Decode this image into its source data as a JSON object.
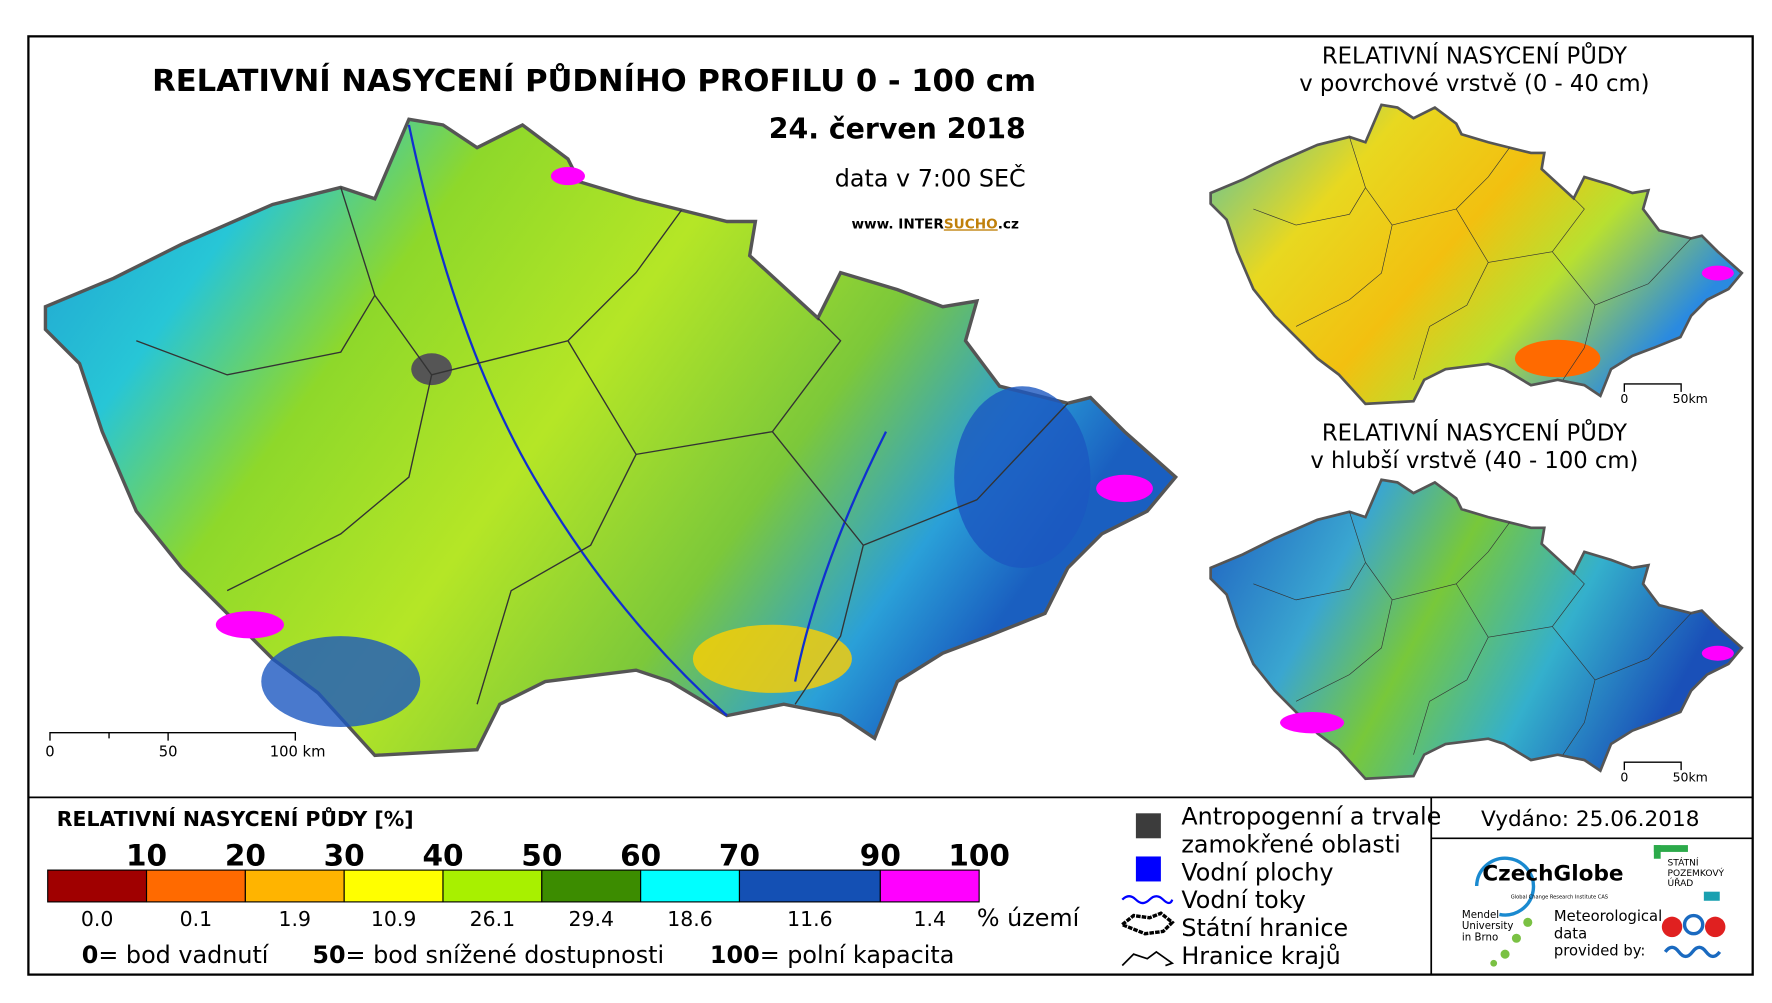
{
  "map": {
    "title": "RELATIVNÍ NASYCENÍ PŮDNÍHO PROFILU 0 - 100 cm",
    "date": "24. červen 2018",
    "time_note": "data v 7:00 SEČ",
    "website": [
      "www. INTER",
      "SUCHO",
      ".cz"
    ],
    "scale_labels": [
      "0",
      "50",
      "100 km"
    ]
  },
  "insets": [
    {
      "title": [
        "RELATIVNÍ NASYCENÍ PŮDY",
        "v povrchové vrstvě (0 - 40 cm)"
      ],
      "scale_labels": [
        "0",
        "50km"
      ]
    },
    {
      "title": [
        "RELATIVNÍ NASYCENÍ PŮDY",
        "v hlubší vrstvě (40 - 100 cm)"
      ],
      "scale_labels": [
        "0",
        "50km"
      ]
    }
  ],
  "legend": {
    "title": "RELATIVNÍ NASYCENÍ PŮDY [%]",
    "breaks": [
      "10",
      "20",
      "30",
      "40",
      "50",
      "60",
      "70",
      "90",
      "100"
    ],
    "colors": [
      "#a00000",
      "#ff6a00",
      "#ffb400",
      "#ffff00",
      "#a8f000",
      "#3c8c00",
      "#00ffff",
      "#1450b4",
      "#ff00ff"
    ],
    "shares": [
      "0.0",
      "0.1",
      "1.9",
      "10.9",
      "26.1",
      "29.4",
      "18.6",
      "11.6",
      "1.4"
    ],
    "share_unit": "% území",
    "notes": [
      {
        "num": "0",
        "text": "= bod vadnutí"
      },
      {
        "num": "50",
        "text": "= bod snížené dostupnosti"
      },
      {
        "num": "100",
        "text": "= polní kapacita"
      }
    ]
  },
  "symbols": [
    [
      "Antropogenní a trvale",
      "zamokřené oblasti"
    ],
    [
      "Vodní plochy"
    ],
    [
      "Vodní toky"
    ],
    [
      "Státní hranice"
    ],
    [
      "Hranice krajů"
    ]
  ],
  "issued": "Vydáno: 25.06.2018",
  "logos": {
    "czechglobe": "CzechGlobe",
    "czechglobe_sub": "Global Change Research Institute CAS",
    "spu": [
      "STÁTNÍ",
      "POZEMKOVÝ",
      "ÚŘAD"
    ],
    "mendel": [
      "Mendel",
      "University",
      "in Brno"
    ],
    "meteo": [
      "Meteorological",
      "data",
      "provided by:"
    ]
  }
}
